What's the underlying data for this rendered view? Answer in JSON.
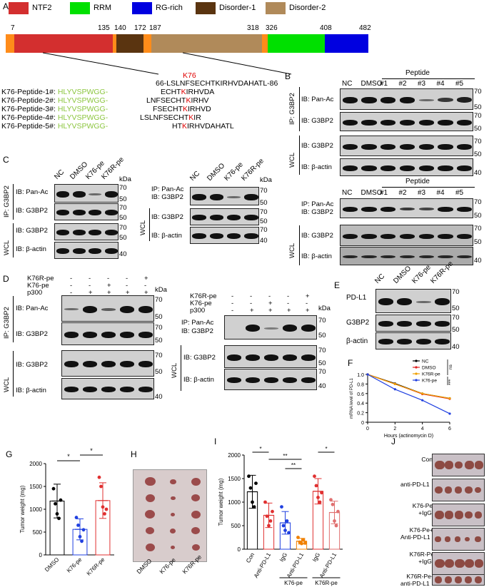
{
  "panelA": {
    "label": "A",
    "legend": [
      {
        "name": "NTF2",
        "color": "#d32f2f"
      },
      {
        "name": "RRM",
        "color": "#00e000"
      },
      {
        "name": "RG-rich",
        "color": "#0000e0"
      },
      {
        "name": "Disorder-1",
        "color": "#5a3410"
      },
      {
        "name": "Disorder-2",
        "color": "#b08a5a"
      }
    ],
    "positions": [
      "7",
      "135",
      "140",
      "172",
      "187",
      "318",
      "326",
      "408",
      "482"
    ],
    "k76": "K76",
    "wt_seq": "66-LSLNFSECHTKIRHVDAHATL-86",
    "peptides": [
      {
        "name": "K76-Peptide-1#:",
        "tag": "HLYVSPWGG-",
        "pre": "ECHT",
        "k": "K",
        "post": "IRHVDA"
      },
      {
        "name": "K76-Peptide-2#:",
        "tag": "HLYVSPWGG-",
        "pre": "LNFSECHT",
        "k": "K",
        "post": "IRHV"
      },
      {
        "name": "K76-Peptide-3#:",
        "tag": "HLYVSPWGG-",
        "pre": "FSECHT",
        "k": "K",
        "post": "IRHVD"
      },
      {
        "name": "K76-Peptide-4#:",
        "tag": "HLYVSPWGG-",
        "pre": "LSLNFSECHT",
        "k": "K",
        "post": "IR"
      },
      {
        "name": "K76-Peptide-5#:",
        "tag": "HLYVSPWGG-",
        "pre": "HT",
        "k": "K",
        "post": "IRHVDAHATL"
      }
    ]
  },
  "panelB": {
    "label": "B",
    "peptide": "Peptide",
    "lanes": [
      "NC",
      "DMSO",
      "#1",
      "#2",
      "#3",
      "#4",
      "#5"
    ],
    "ip": "IP: G3BP2",
    "wcl": "WCL",
    "ib_panac": "IB: Pan-Ac",
    "ib_g3bp2": "IB: G3BP2",
    "ib_actin": "IB: β-actin",
    "ip_panac": "IP: Pan-Ac",
    "kda": [
      "70",
      "50",
      "70",
      "50",
      "70",
      "50",
      "40"
    ],
    "kda2": [
      "70",
      "50",
      "70",
      "50",
      "40"
    ]
  },
  "panelC": {
    "label": "C",
    "lanes": [
      "NC",
      "DMSO",
      "K76-pe",
      "K76R-pe"
    ],
    "ip": "IP: G3BP2",
    "wcl": "WCL",
    "ib_panac": "IB: Pan-Ac",
    "ib_g3bp2": "IB: G3BP2",
    "ib_actin": "IB: β-actin",
    "ip_panac": "IP: Pan-Ac",
    "kda": "kDa",
    "ladder": [
      "70",
      "50",
      "70",
      "50",
      "70",
      "50",
      "40"
    ],
    "ladder2": [
      "70",
      "50",
      "70",
      "50",
      "70",
      "40"
    ]
  },
  "panelD": {
    "label": "D",
    "rows": [
      "K76R-pe",
      "K76-pe",
      "p300"
    ],
    "signs": [
      [
        "-",
        "-",
        "-",
        "-",
        "+"
      ],
      [
        "-",
        "-",
        "+",
        "-",
        "-"
      ],
      [
        "-",
        "+",
        "+",
        "+",
        "+"
      ]
    ],
    "ip": "IP: G3BP2",
    "wcl": "WCL",
    "ib_panac": "IB: Pan-Ac",
    "ib_g3bp2": "IB: G3BP2",
    "ib_actin": "IB: β-actin",
    "ip_panac": "IP: Pan-Ac",
    "kda": "kDa",
    "ladder": [
      "70",
      "50",
      "70",
      "50",
      "70",
      "50",
      "40"
    ],
    "ladder2": [
      "70",
      "50",
      "70",
      "50",
      "70",
      "40"
    ]
  },
  "panelE": {
    "label": "E",
    "lanes": [
      "NC",
      "DMSO",
      "K76-pe",
      "K76R-pe"
    ],
    "rows": [
      "PD-L1",
      "G3BP2",
      "β-actin"
    ],
    "ladder": [
      "70",
      "50",
      "70",
      "50",
      "40"
    ]
  },
  "panelF": {
    "label": "F",
    "legend": [
      "NC",
      "DMSO",
      "K76R-pe",
      "K76-pe"
    ],
    "ns": "ns",
    "sig": "***"
  },
  "panelG": {
    "label": "G",
    "sig": [
      "*",
      "*"
    ]
  },
  "panelH": {
    "label": "H",
    "cols": [
      "DMSO",
      "K76-pe",
      "K76R-pe"
    ]
  },
  "panelI": {
    "label": "I",
    "sig": [
      "*",
      "**",
      "**",
      "*"
    ],
    "group_labels": [
      "K76-pe",
      "K76R-pe"
    ]
  },
  "panelJ": {
    "label": "J",
    "rows": [
      "Con",
      "anti-PD-L1",
      "K76-Pe\n+IgG",
      "K76-Pe+\nAnti-PD-L1",
      "K76R-Pe\n+IgG",
      "K76R-Pe+\nanti-PD-L1"
    ]
  },
  "chart_data": [
    {
      "type": "line",
      "panel": "F",
      "xlabel": "Hours (actinomycin D)",
      "ylabel": "mRNA level of PD-L1",
      "x": [
        0,
        2,
        4,
        6
      ],
      "xlim": [
        0,
        6
      ],
      "ylim": [
        0,
        1.0
      ],
      "xticks": [
        "0",
        "2",
        "4",
        "6"
      ],
      "yticks": [
        "0",
        "0.2",
        "0.4",
        "0.6",
        "0.8",
        "1.0"
      ],
      "series": [
        {
          "name": "NC",
          "color": "#000000",
          "values": [
            1.0,
            0.81,
            0.6,
            0.5
          ]
        },
        {
          "name": "DMSO",
          "color": "#e02020",
          "values": [
            1.0,
            0.8,
            0.59,
            0.49
          ]
        },
        {
          "name": "K76R-pe",
          "color": "#f0a000",
          "values": [
            1.0,
            0.8,
            0.6,
            0.5
          ]
        },
        {
          "name": "K76-pe",
          "color": "#2040e0",
          "values": [
            1.0,
            0.69,
            0.46,
            0.18
          ]
        }
      ]
    },
    {
      "type": "bar",
      "panel": "G",
      "ylabel": "Tumor weight (mg)",
      "categories": [
        "DMSO",
        "K76-pe",
        "K76R-pe"
      ],
      "colors": [
        "#000000",
        "#2040e0",
        "#e03030"
      ],
      "values": [
        1180,
        560,
        1190
      ],
      "errors": [
        370,
        230,
        390
      ],
      "points": [
        [
          1450,
          1120,
          900,
          800,
          1200
        ],
        [
          820,
          650,
          400,
          300,
          550
        ],
        [
          1700,
          1500,
          1050,
          900,
          1000
        ]
      ],
      "ylim": [
        0,
        2000
      ],
      "yticks": [
        "0",
        "500",
        "1000",
        "1500",
        "2000"
      ]
    },
    {
      "type": "bar",
      "panel": "I",
      "ylabel": "Tumor weight (mg)",
      "categories": [
        "Con",
        "Anti-PD-L1",
        "IgG",
        "Anti-PD-L1",
        "IgG",
        "Anti-PD-L1"
      ],
      "colors": [
        "#000000",
        "#e03030",
        "#2040e0",
        "#f08000",
        "#e03030",
        "#e07070"
      ],
      "values": [
        1220,
        720,
        560,
        170,
        1230,
        780
      ],
      "errors": [
        350,
        260,
        240,
        60,
        270,
        240
      ],
      "points": [
        [
          1550,
          1300,
          1000,
          900,
          1400
        ],
        [
          1000,
          700,
          500,
          600,
          800
        ],
        [
          900,
          500,
          400,
          600,
          350
        ],
        [
          250,
          150,
          120,
          200,
          130
        ],
        [
          1550,
          1350,
          1100,
          1000,
          1200
        ],
        [
          1050,
          950,
          600,
          500,
          800
        ]
      ],
      "ylim": [
        0,
        2000
      ],
      "yticks": [
        "0",
        "500",
        "1000",
        "1500",
        "2000"
      ]
    }
  ]
}
